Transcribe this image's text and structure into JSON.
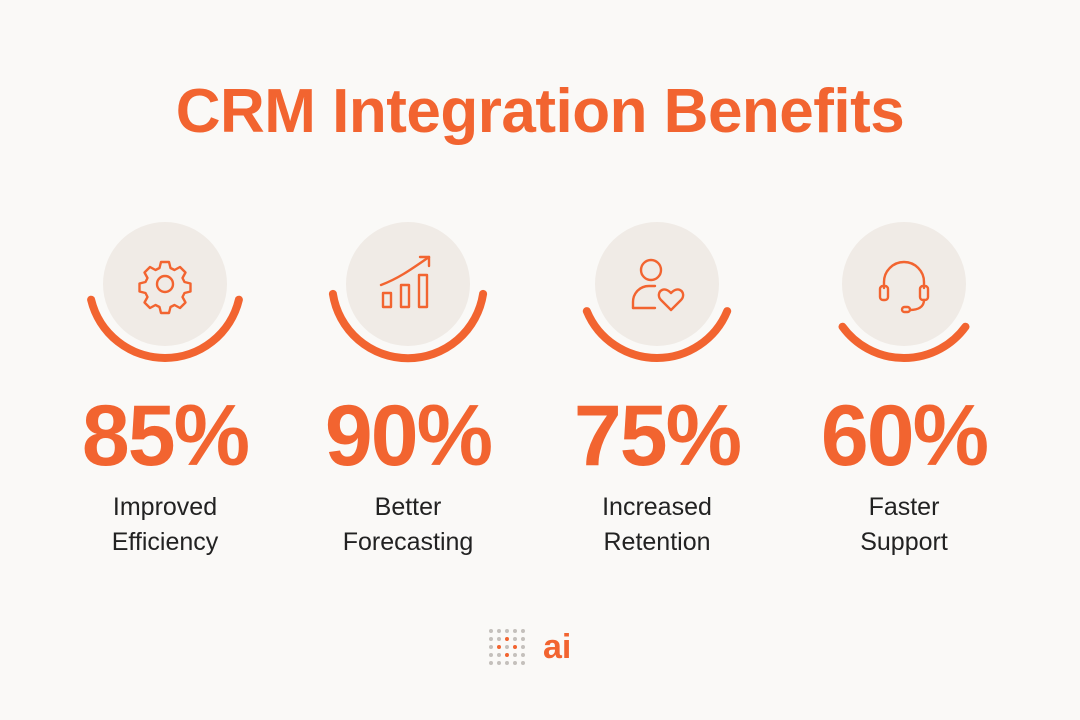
{
  "title": "CRM Integration Benefits",
  "accent_color": "#f26430",
  "stats": [
    {
      "value": "85%",
      "label_line1": "Improved",
      "label_line2": "Efficiency",
      "icon": "gear-icon",
      "level": 0.85
    },
    {
      "value": "90%",
      "label_line1": "Better",
      "label_line2": "Forecasting",
      "icon": "growth-chart-icon",
      "level": 0.9
    },
    {
      "value": "75%",
      "label_line1": "Increased",
      "label_line2": "Retention",
      "icon": "user-heart-icon",
      "level": 0.75
    },
    {
      "value": "60%",
      "label_line1": "Faster",
      "label_line2": "Support",
      "icon": "headset-icon",
      "level": 0.6
    }
  ],
  "logo": {
    "text": "ai"
  }
}
